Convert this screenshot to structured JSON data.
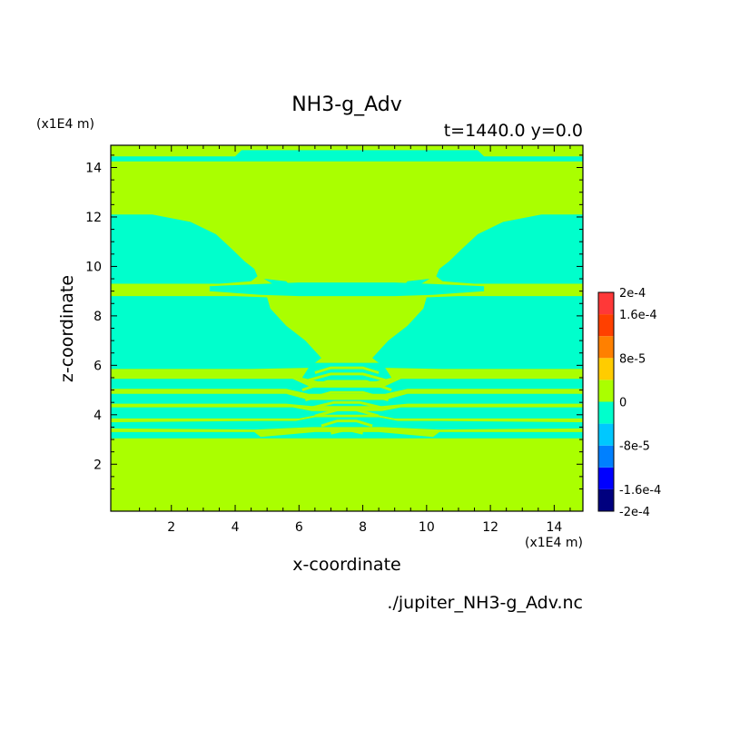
{
  "chart_data": {
    "type": "heatmap",
    "title": "NH3-g_Adv",
    "subtitle": "t=1440.0 y=0.0",
    "xlabel": "x-coordinate",
    "ylabel": "z-coordinate",
    "x_unit": "(x1E4 m)",
    "y_unit": "(x1E4 m)",
    "footer": "./jupiter_NH3-g_Adv.nc",
    "xlim": [
      0.1,
      14.9
    ],
    "ylim": [
      0.1,
      14.9
    ],
    "x_ticks": [
      "2",
      "4",
      "6",
      "8",
      "10",
      "12",
      "14"
    ],
    "y_ticks": [
      "2",
      "4",
      "6",
      "8",
      "10",
      "12",
      "14"
    ],
    "colorbar": {
      "labels": [
        {
          "text": "2e-4",
          "value": 0.0002
        },
        {
          "text": "1.6e-4",
          "value": 0.00016
        },
        {
          "text": "8e-5",
          "value": 8e-05
        },
        {
          "text": "0",
          "value": 0
        },
        {
          "text": "-8e-5",
          "value": -8e-05
        },
        {
          "text": "-1.6e-4",
          "value": -0.00016
        },
        {
          "text": "-2e-4",
          "value": -0.0002
        }
      ],
      "levels": [
        {
          "color": "#00007f",
          "lo": -0.0002,
          "hi": -0.00016
        },
        {
          "color": "#0000ff",
          "lo": -0.00016,
          "hi": -0.00012
        },
        {
          "color": "#0080ff",
          "lo": -0.00012,
          "hi": -8e-05
        },
        {
          "color": "#00c8ff",
          "lo": -8e-05,
          "hi": -4e-05
        },
        {
          "color": "#00ffcc",
          "lo": -4e-05,
          "hi": 0
        },
        {
          "color": "#aaff00",
          "lo": 0,
          "hi": 4e-05
        },
        {
          "color": "#ffcc00",
          "lo": 4e-05,
          "hi": 8e-05
        },
        {
          "color": "#ff8000",
          "lo": 8e-05,
          "hi": 0.00012
        },
        {
          "color": "#ff4000",
          "lo": 0.00012,
          "hi": 0.00016
        },
        {
          "color": "#ff3838",
          "lo": 0.00016,
          "hi": 0.0002
        }
      ]
    },
    "background_color": "#aaff00",
    "negative_color": "#00ffcc",
    "regions": [
      {
        "label": "top thin band",
        "points": [
          [
            0.1,
            14.45
          ],
          [
            4.0,
            14.45
          ],
          [
            4.2,
            14.7
          ],
          [
            11.6,
            14.7
          ],
          [
            11.8,
            14.45
          ],
          [
            14.9,
            14.45
          ],
          [
            14.9,
            14.25
          ],
          [
            0.1,
            14.25
          ]
        ]
      },
      {
        "label": "upper left wedge",
        "points": [
          [
            0.1,
            12.1
          ],
          [
            1.4,
            12.1
          ],
          [
            2.6,
            11.8
          ],
          [
            3.4,
            11.3
          ],
          [
            3.9,
            10.7
          ],
          [
            4.3,
            10.2
          ],
          [
            4.6,
            9.9
          ],
          [
            4.7,
            9.6
          ],
          [
            4.5,
            9.4
          ],
          [
            3.5,
            9.3
          ],
          [
            0.1,
            9.3
          ]
        ]
      },
      {
        "label": "upper right wedge",
        "points": [
          [
            14.9,
            12.1
          ],
          [
            13.6,
            12.1
          ],
          [
            12.4,
            11.8
          ],
          [
            11.6,
            11.3
          ],
          [
            11.1,
            10.7
          ],
          [
            10.7,
            10.2
          ],
          [
            10.4,
            9.9
          ],
          [
            10.3,
            9.6
          ],
          [
            10.5,
            9.4
          ],
          [
            11.5,
            9.3
          ],
          [
            14.9,
            9.3
          ]
        ]
      },
      {
        "label": "mid connector",
        "points": [
          [
            3.2,
            9.2
          ],
          [
            5.0,
            9.3
          ],
          [
            6.0,
            9.35
          ],
          [
            9.0,
            9.35
          ],
          [
            10.0,
            9.3
          ],
          [
            11.8,
            9.2
          ],
          [
            11.8,
            9.0
          ],
          [
            10.2,
            8.85
          ],
          [
            9.0,
            8.8
          ],
          [
            6.0,
            8.8
          ],
          [
            4.8,
            8.85
          ],
          [
            3.2,
            9.0
          ]
        ]
      },
      {
        "label": "center left notch",
        "points": [
          [
            4.9,
            9.5
          ],
          [
            5.6,
            9.4
          ],
          [
            5.8,
            9.1
          ],
          [
            5.3,
            9.2
          ]
        ]
      },
      {
        "label": "center right notch",
        "points": [
          [
            10.1,
            9.5
          ],
          [
            9.4,
            9.4
          ],
          [
            9.2,
            9.1
          ],
          [
            9.7,
            9.2
          ]
        ]
      },
      {
        "label": "left lobe",
        "points": [
          [
            0.1,
            8.8
          ],
          [
            4.0,
            8.8
          ],
          [
            5.0,
            8.75
          ],
          [
            5.1,
            8.3
          ],
          [
            5.6,
            7.6
          ],
          [
            6.2,
            7.0
          ],
          [
            6.7,
            6.3
          ],
          [
            6.3,
            5.9
          ],
          [
            4.5,
            5.85
          ],
          [
            0.1,
            5.85
          ]
        ]
      },
      {
        "label": "right lobe",
        "points": [
          [
            14.9,
            8.8
          ],
          [
            11.0,
            8.8
          ],
          [
            10.0,
            8.75
          ],
          [
            9.9,
            8.3
          ],
          [
            9.4,
            7.6
          ],
          [
            8.8,
            7.0
          ],
          [
            8.3,
            6.3
          ],
          [
            8.7,
            5.9
          ],
          [
            10.5,
            5.85
          ],
          [
            14.9,
            5.85
          ]
        ]
      },
      {
        "label": "central cap",
        "points": [
          [
            6.3,
            5.9
          ],
          [
            6.4,
            6.1
          ],
          [
            8.6,
            6.1
          ],
          [
            8.7,
            5.9
          ],
          [
            8.9,
            5.5
          ],
          [
            8.4,
            5.35
          ],
          [
            7.5,
            5.35
          ],
          [
            6.6,
            5.35
          ],
          [
            6.1,
            5.5
          ]
        ]
      },
      {
        "label": "band 5.2",
        "points": [
          [
            0.1,
            5.45
          ],
          [
            5.8,
            5.45
          ],
          [
            6.4,
            5.1
          ],
          [
            8.6,
            5.1
          ],
          [
            9.2,
            5.45
          ],
          [
            14.9,
            5.45
          ],
          [
            14.9,
            5.05
          ],
          [
            9.4,
            5.05
          ],
          [
            8.7,
            4.85
          ],
          [
            6.3,
            4.85
          ],
          [
            5.6,
            5.05
          ],
          [
            0.1,
            5.05
          ]
        ]
      },
      {
        "label": "band 4.7",
        "points": [
          [
            0.1,
            4.85
          ],
          [
            5.6,
            4.85
          ],
          [
            6.3,
            4.6
          ],
          [
            8.7,
            4.6
          ],
          [
            9.4,
            4.85
          ],
          [
            14.9,
            4.85
          ],
          [
            14.9,
            4.45
          ],
          [
            9.4,
            4.45
          ],
          [
            8.6,
            4.35
          ],
          [
            6.4,
            4.35
          ],
          [
            5.6,
            4.45
          ],
          [
            0.1,
            4.45
          ]
        ]
      },
      {
        "label": "band 4.1",
        "points": [
          [
            0.1,
            4.3
          ],
          [
            5.8,
            4.3
          ],
          [
            6.4,
            4.15
          ],
          [
            8.6,
            4.15
          ],
          [
            9.2,
            4.3
          ],
          [
            14.9,
            4.3
          ],
          [
            14.9,
            3.85
          ],
          [
            9.0,
            3.85
          ],
          [
            8.4,
            4.0
          ],
          [
            6.6,
            4.0
          ],
          [
            6.0,
            3.85
          ],
          [
            0.1,
            3.85
          ]
        ]
      },
      {
        "label": "band 3.6",
        "points": [
          [
            0.1,
            3.7
          ],
          [
            4.8,
            3.75
          ],
          [
            5.9,
            3.75
          ],
          [
            6.5,
            3.9
          ],
          [
            8.5,
            3.9
          ],
          [
            9.1,
            3.75
          ],
          [
            10.4,
            3.75
          ],
          [
            14.9,
            3.7
          ],
          [
            14.9,
            3.45
          ],
          [
            10.4,
            3.4
          ],
          [
            8.6,
            3.5
          ],
          [
            6.4,
            3.5
          ],
          [
            4.6,
            3.4
          ],
          [
            0.1,
            3.45
          ]
        ]
      },
      {
        "label": "band 3.1",
        "points": [
          [
            0.1,
            3.3
          ],
          [
            4.6,
            3.3
          ],
          [
            4.8,
            3.1
          ],
          [
            6.5,
            3.3
          ],
          [
            8.5,
            3.3
          ],
          [
            10.2,
            3.1
          ],
          [
            10.4,
            3.3
          ],
          [
            14.9,
            3.3
          ],
          [
            14.9,
            3.05
          ],
          [
            0.1,
            3.05
          ]
        ]
      }
    ],
    "contour_lines": [
      {
        "points": [
          [
            6.5,
            5.7
          ],
          [
            7.0,
            5.9
          ],
          [
            8.0,
            5.9
          ],
          [
            8.5,
            5.7
          ]
        ]
      },
      {
        "points": [
          [
            6.3,
            5.4
          ],
          [
            7.0,
            5.65
          ],
          [
            8.0,
            5.65
          ],
          [
            8.7,
            5.4
          ]
        ]
      },
      {
        "points": [
          [
            6.1,
            5.0
          ],
          [
            6.9,
            5.35
          ],
          [
            8.1,
            5.35
          ],
          [
            8.9,
            5.0
          ]
        ]
      },
      {
        "points": [
          [
            6.2,
            4.6
          ],
          [
            7.0,
            4.9
          ],
          [
            8.0,
            4.9
          ],
          [
            8.8,
            4.6
          ]
        ]
      },
      {
        "points": [
          [
            6.3,
            4.25
          ],
          [
            7.1,
            4.5
          ],
          [
            7.9,
            4.5
          ],
          [
            8.7,
            4.25
          ]
        ]
      },
      {
        "points": [
          [
            6.5,
            3.95
          ],
          [
            7.2,
            4.2
          ],
          [
            7.8,
            4.2
          ],
          [
            8.5,
            3.95
          ]
        ]
      },
      {
        "points": [
          [
            6.7,
            3.55
          ],
          [
            7.2,
            3.75
          ],
          [
            7.8,
            3.75
          ],
          [
            8.3,
            3.55
          ]
        ]
      },
      {
        "points": [
          [
            7.0,
            3.25
          ],
          [
            7.5,
            3.4
          ],
          [
            8.0,
            3.25
          ]
        ]
      }
    ]
  }
}
